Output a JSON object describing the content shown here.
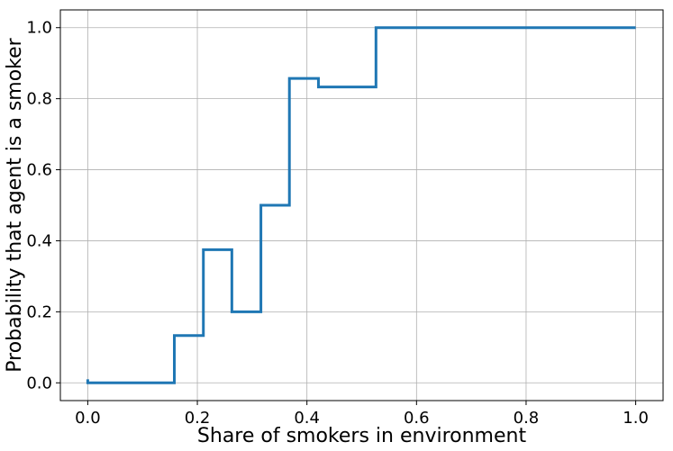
{
  "chart_data": {
    "type": "line",
    "drawstyle": "steps-post",
    "xlabel": "Share of smokers in environment",
    "ylabel": "Probability that agent is a smoker",
    "xlim": [
      -0.05,
      1.05
    ],
    "ylim": [
      -0.05,
      1.05
    ],
    "xticks": [
      0.0,
      0.2,
      0.4,
      0.6,
      0.8,
      1.0
    ],
    "xtick_labels": [
      "0.0",
      "0.2",
      "0.4",
      "0.6",
      "0.8",
      "1.0"
    ],
    "yticks": [
      0.0,
      0.2,
      0.4,
      0.6,
      0.8,
      1.0
    ],
    "ytick_labels": [
      "0.0",
      "0.2",
      "0.4",
      "0.6",
      "0.8",
      "1.0"
    ],
    "grid": true,
    "series": [
      {
        "color": "#1f77b4",
        "x": [
          0.0,
          0.0,
          0.158,
          0.211,
          0.263,
          0.316,
          0.368,
          0.421,
          0.526,
          1.0
        ],
        "y": [
          0.01,
          0.0,
          0.133,
          0.375,
          0.2,
          0.5,
          0.857,
          0.833,
          1.0,
          1.0
        ]
      }
    ]
  }
}
